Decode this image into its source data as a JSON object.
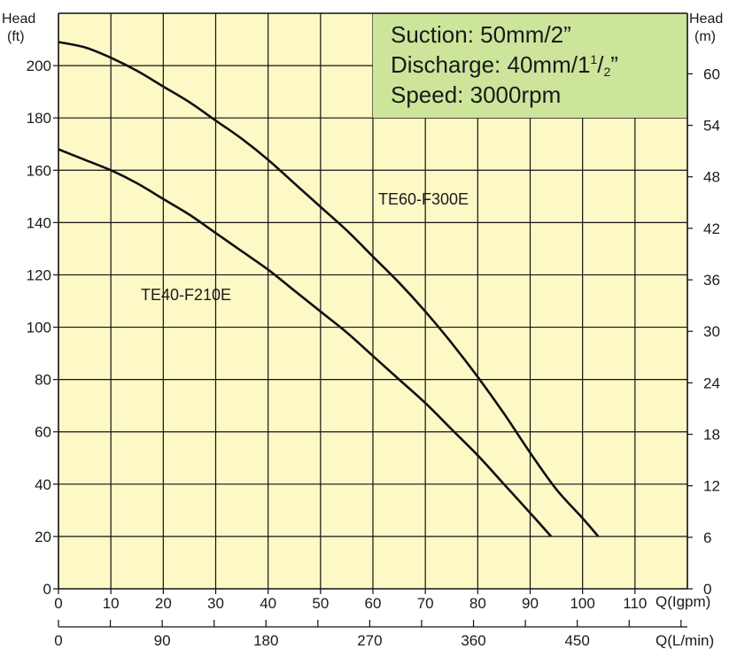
{
  "chart_data": {
    "type": "line",
    "xlabel": "Q(Igpm)",
    "x2label": "Q(L/min)",
    "ylabel_left": "Head\n(ft)",
    "ylabel_right": "Head\n(m)",
    "xlim": [
      0,
      120
    ],
    "ylim": [
      0,
      220
    ],
    "x_ticks": [
      0,
      10,
      20,
      30,
      40,
      50,
      60,
      70,
      80,
      90,
      100,
      110
    ],
    "x2_ticks": [
      0,
      90,
      180,
      270,
      360,
      450
    ],
    "y_ticks": [
      0,
      20,
      40,
      60,
      80,
      100,
      120,
      140,
      160,
      180,
      200
    ],
    "y2_ticks": [
      0,
      6,
      12,
      18,
      24,
      30,
      36,
      42,
      48,
      54,
      60
    ],
    "grid": true,
    "series": [
      {
        "name": "TE60-F300E",
        "x": [
          0,
          5,
          10,
          15,
          20,
          25,
          30,
          35,
          40,
          45,
          50,
          55,
          60,
          65,
          70,
          75,
          80,
          85,
          90,
          95,
          100,
          103
        ],
        "y": [
          209,
          207,
          203,
          198,
          192,
          186,
          179,
          172,
          164,
          155,
          146,
          137,
          127,
          117,
          106,
          94,
          81,
          67,
          52,
          38,
          27,
          20
        ]
      },
      {
        "name": "TE40-F210E",
        "x": [
          0,
          5,
          10,
          15,
          20,
          25,
          30,
          35,
          40,
          45,
          50,
          55,
          60,
          65,
          70,
          75,
          80,
          85,
          90,
          94
        ],
        "y": [
          168,
          164,
          160,
          155,
          149,
          143,
          136,
          129,
          122,
          114,
          106,
          98,
          89,
          80,
          71,
          61,
          51,
          40,
          29,
          20
        ]
      }
    ]
  },
  "spec": {
    "suction": "Suction: 50mm/2”",
    "discharge_main": "Discharge: 40mm/1",
    "discharge_num": "1",
    "discharge_slash": "/",
    "discharge_den": "2",
    "discharge_end": "”",
    "speed": "Speed: 3000rpm"
  },
  "colors": {
    "plot_bg": "#FDF9C7",
    "spec_bg": "#CCE59B",
    "curve": "#111111",
    "grid": "#111111"
  }
}
